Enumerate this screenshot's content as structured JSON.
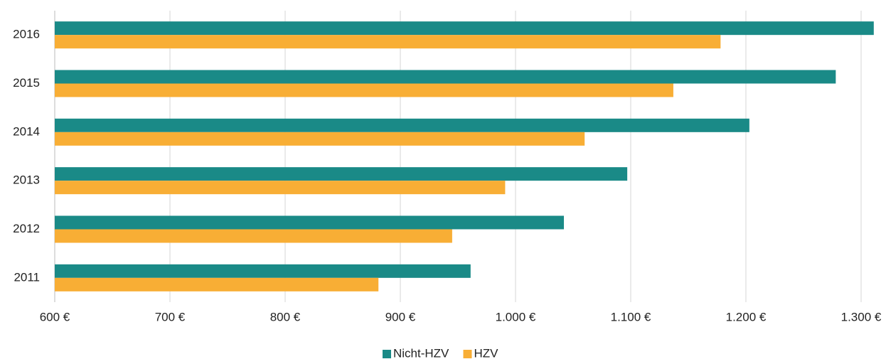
{
  "chart_data": {
    "type": "hbar",
    "categories": [
      "2016",
      "2015",
      "2014",
      "2013",
      "2012",
      "2011"
    ],
    "series": [
      {
        "name": "Nicht-HZV",
        "color": "#1a8a87",
        "values": [
          1311,
          1278,
          1203,
          1097,
          1042,
          961
        ]
      },
      {
        "name": "HZV",
        "color": "#f8ae35",
        "values": [
          1178,
          1137,
          1060,
          991,
          945,
          881
        ]
      }
    ],
    "xlim": [
      600,
      1321
    ],
    "xticks": [
      {
        "value": 600,
        "label": "600 €"
      },
      {
        "value": 700,
        "label": "700 €"
      },
      {
        "value": 800,
        "label": "800 €"
      },
      {
        "value": 900,
        "label": "900 €"
      },
      {
        "value": 1000,
        "label": "1.000 €"
      },
      {
        "value": 1100,
        "label": "1.100 €"
      },
      {
        "value": 1200,
        "label": "1.200 €"
      },
      {
        "value": 1300,
        "label": "1.300 €"
      }
    ],
    "grid": true,
    "legend": "bottom"
  }
}
